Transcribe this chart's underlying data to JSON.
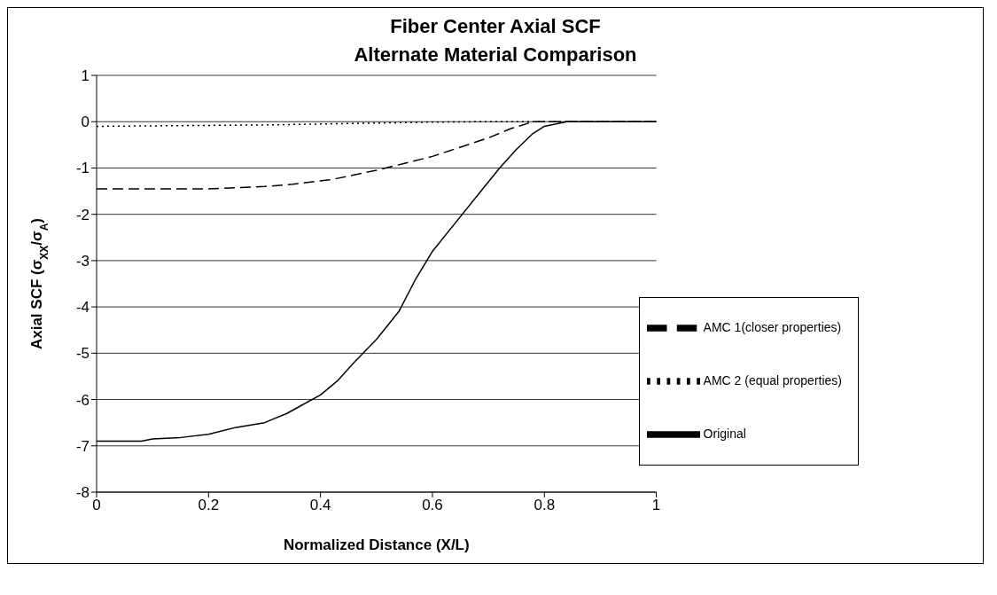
{
  "chart_data": {
    "type": "line",
    "title": "Fiber Center Axial SCF",
    "subtitle": "Alternate Material Comparison",
    "xlabel": "Normalized Distance (X/L)",
    "ylabel": "Axial SCF (σ$_{XX}$/σ$_{A}$)",
    "xlim": [
      0,
      1
    ],
    "xticks": [
      0,
      0.2,
      0.4,
      0.6,
      0.8,
      1
    ],
    "ylim": [
      -8,
      1
    ],
    "yticks": [
      -8,
      -7,
      -6,
      -5,
      -4,
      -3,
      -2,
      -1,
      0,
      1
    ],
    "grid": "y",
    "legend": "bottom right",
    "marker": "none",
    "series": [
      {
        "name": "AMC 1(closer properties)",
        "color": "#000000",
        "line_style": "dashed",
        "x": [
          0,
          0.1,
          0.2,
          0.3,
          0.35,
          0.42,
          0.46,
          0.5,
          0.55,
          0.6,
          0.65,
          0.7,
          0.74,
          0.78,
          0.85,
          0.9,
          1
        ],
        "values": [
          -1.45,
          -1.45,
          -1.45,
          -1.4,
          -1.35,
          -1.25,
          -1.15,
          -1.05,
          -0.9,
          -0.75,
          -0.55,
          -0.35,
          -0.15,
          0,
          0,
          0,
          0
        ]
      },
      {
        "name": "AMC 2 (equal properties)",
        "color": "#000000",
        "line_style": "dotted",
        "x": [
          0,
          0.1,
          0.2,
          0.3,
          0.4,
          0.5,
          0.6,
          0.7,
          0.8,
          0.9,
          1
        ],
        "values": [
          -0.1,
          -0.09,
          -0.08,
          -0.07,
          -0.05,
          -0.03,
          -0.01,
          0,
          0,
          0,
          0
        ]
      },
      {
        "name": "Original",
        "color": "#000000",
        "line_style": "solid",
        "x": [
          0,
          0.08,
          0.1,
          0.15,
          0.2,
          0.25,
          0.3,
          0.34,
          0.37,
          0.4,
          0.43,
          0.46,
          0.5,
          0.54,
          0.57,
          0.6,
          0.64,
          0.68,
          0.72,
          0.75,
          0.78,
          0.8,
          0.84,
          0.9,
          1
        ],
        "values": [
          -6.9,
          -6.9,
          -6.85,
          -6.82,
          -6.75,
          -6.6,
          -6.5,
          -6.3,
          -6.1,
          -5.9,
          -5.6,
          -5.2,
          -4.7,
          -4.1,
          -3.4,
          -2.8,
          -2.2,
          -1.6,
          -1,
          -0.6,
          -0.25,
          -0.1,
          0,
          0,
          0
        ]
      }
    ]
  }
}
